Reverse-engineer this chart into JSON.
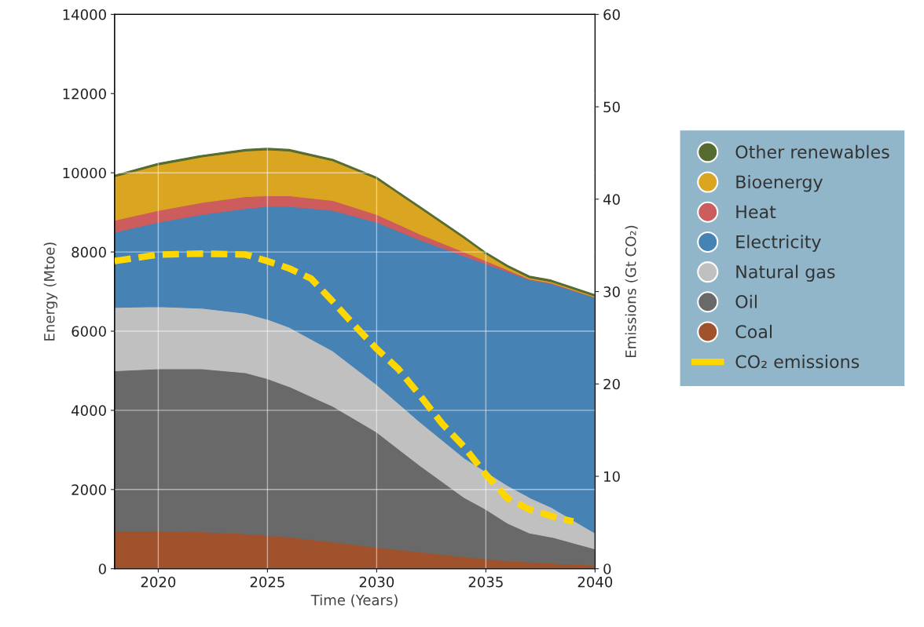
{
  "chart_data": {
    "type": "area",
    "stacked": true,
    "xlabel": "Time (Years)",
    "ylabel": "Energy (Mtoe)",
    "y2label": "Emissions (Gt CO₂)",
    "x": [
      2018,
      2020,
      2022,
      2024,
      2025,
      2026,
      2028,
      2030,
      2032,
      2034,
      2035,
      2036,
      2037,
      2038,
      2040
    ],
    "series": [
      {
        "name": "Coal",
        "color": "#a0522d",
        "values": [
          950,
          950,
          930,
          880,
          840,
          800,
          680,
          540,
          420,
          300,
          250,
          200,
          170,
          140,
          90
        ]
      },
      {
        "name": "Oil",
        "color": "#696969",
        "values": [
          4050,
          4100,
          4120,
          4070,
          3960,
          3800,
          3420,
          2910,
          2180,
          1500,
          1250,
          950,
          730,
          660,
          410
        ]
      },
      {
        "name": "Natural gas",
        "color": "#c0c0c0",
        "values": [
          1600,
          1570,
          1530,
          1500,
          1500,
          1500,
          1400,
          1200,
          1100,
          1000,
          950,
          950,
          900,
          750,
          400
        ]
      },
      {
        "name": "Electricity",
        "color": "#4682b4",
        "values": [
          1900,
          2130,
          2370,
          2650,
          2850,
          3050,
          3550,
          4100,
          4600,
          5100,
          5250,
          5400,
          5500,
          5650,
          5950
        ]
      },
      {
        "name": "Heat",
        "color": "#cd5c5c",
        "values": [
          300,
          300,
          300,
          300,
          270,
          270,
          250,
          200,
          150,
          100,
          80,
          50,
          20,
          20,
          10
        ]
      },
      {
        "name": "Bioenergy",
        "color": "#daa520",
        "values": [
          1100,
          1150,
          1150,
          1150,
          1160,
          1130,
          1000,
          900,
          650,
          350,
          170,
          70,
          30,
          30,
          20
        ]
      },
      {
        "name": "Other renewables",
        "color": "#556b2f",
        "values": [
          40,
          40,
          40,
          40,
          40,
          40,
          40,
          40,
          40,
          40,
          40,
          40,
          40,
          40,
          40
        ]
      },
      {
        "name": "CO₂ emissions",
        "type": "line",
        "axis": "y2",
        "color": "#ffd700",
        "line_style": "dashed",
        "x": [
          2018,
          2020,
          2022,
          2024,
          2025,
          2026,
          2027,
          2028,
          2029,
          2030,
          2031,
          2032,
          2033,
          2034,
          2035,
          2036,
          2037,
          2038,
          2039
        ],
        "values": [
          33.3,
          34.0,
          34.1,
          34.0,
          33.3,
          32.5,
          31.4,
          28.9,
          26.3,
          23.8,
          21.6,
          18.7,
          15.7,
          13.2,
          10.2,
          7.6,
          6.4,
          5.7,
          5.1
        ]
      }
    ],
    "xlim": [
      2018,
      2040
    ],
    "xticks": [
      2020,
      2025,
      2030,
      2035,
      2040
    ],
    "ylim": [
      0,
      14000
    ],
    "yticks": [
      0,
      2000,
      4000,
      6000,
      8000,
      10000,
      12000,
      14000
    ],
    "y2lim": [
      0,
      60
    ],
    "y2ticks": [
      0,
      10,
      20,
      30,
      40,
      50,
      60
    ],
    "grid": true,
    "legend": "right"
  }
}
